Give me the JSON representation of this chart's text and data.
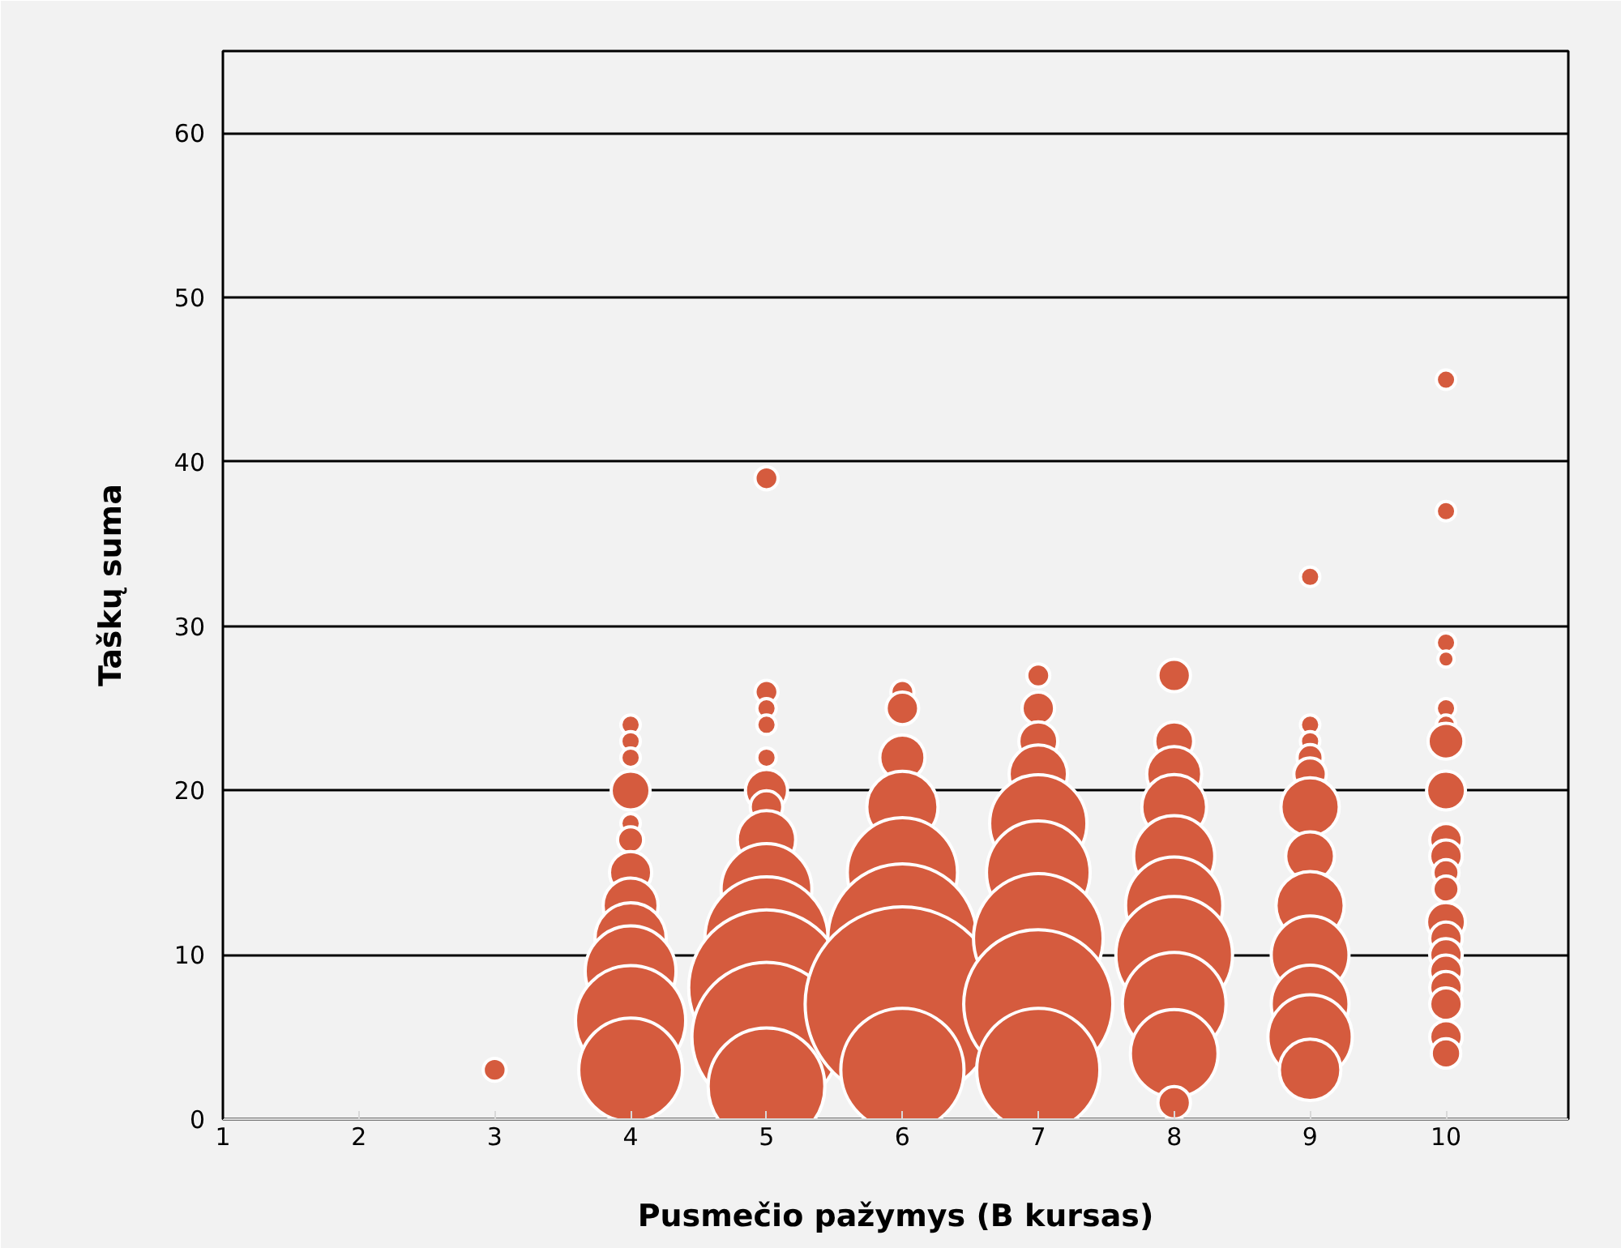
{
  "chart_data": {
    "type": "bubble",
    "xlabel": "Pusmečio pažymys (B kursas)",
    "ylabel": "Taškų suma",
    "xlim": [
      1,
      10.9
    ],
    "ylim": [
      0,
      65
    ],
    "xticks": [
      1,
      2,
      3,
      4,
      5,
      6,
      7,
      8,
      9,
      10
    ],
    "yticks": [
      0,
      10,
      20,
      30,
      40,
      50,
      60
    ],
    "grid": "y",
    "series": [
      {
        "color": "#d55b3e",
        "x": [
          3,
          4,
          4,
          4,
          4,
          4,
          4,
          4,
          4,
          4,
          4,
          4,
          4,
          5,
          5,
          5,
          5,
          5,
          5,
          5,
          5,
          5,
          5,
          5,
          5,
          5,
          6,
          6,
          6,
          6,
          6,
          6,
          6,
          6,
          7,
          7,
          7,
          7,
          7,
          7,
          7,
          7,
          7,
          8,
          8,
          8,
          8,
          8,
          8,
          8,
          8,
          8,
          8,
          9,
          9,
          9,
          9,
          9,
          9,
          9,
          9,
          9,
          9,
          9,
          9,
          10,
          10,
          10,
          10,
          10,
          10,
          10,
          10,
          10,
          10,
          10,
          10,
          10,
          10,
          10,
          10,
          10,
          10,
          10,
          10
        ],
        "values": [
          3,
          24,
          23,
          22,
          20,
          18,
          17,
          15,
          13,
          11,
          9,
          6,
          3,
          39,
          26,
          25,
          24,
          22,
          20,
          19,
          17,
          14,
          11,
          8,
          5,
          2,
          26,
          25,
          22,
          19,
          15,
          11,
          7,
          3,
          27,
          25,
          23,
          21,
          18,
          15,
          11,
          7,
          3,
          27,
          23,
          21,
          19,
          16,
          13,
          10,
          7,
          4,
          1,
          33,
          24,
          23,
          22,
          21,
          19,
          16,
          13,
          10,
          7,
          5,
          3,
          45,
          37,
          29,
          28,
          25,
          24,
          23,
          20,
          17,
          16,
          15,
          14,
          12,
          11,
          10,
          9,
          8,
          7,
          5,
          4
        ],
        "sizes": [
          0.014,
          0.01,
          0.01,
          0.01,
          0.04,
          0.01,
          0.018,
          0.047,
          0.08,
          0.134,
          0.218,
          0.321,
          0.284,
          0.014,
          0.014,
          0.01,
          0.01,
          0.01,
          0.047,
          0.028,
          0.09,
          0.218,
          0.401,
          0.64,
          0.588,
          0.36,
          0.014,
          0.028,
          0.054,
          0.134,
          0.321,
          0.588,
          1,
          0.401,
          0.014,
          0.028,
          0.04,
          0.09,
          0.25,
          0.284,
          0.444,
          0.588,
          0.401,
          0.028,
          0.04,
          0.08,
          0.111,
          0.174,
          0.25,
          0.36,
          0.284,
          0.203,
          0.028,
          0.01,
          0.01,
          0.01,
          0.018,
          0.028,
          0.09,
          0.063,
          0.123,
          0.16,
          0.16,
          0.188,
          0.1,
          0.01,
          0.01,
          0.01,
          0.007,
          0.01,
          0.01,
          0.034,
          0.04,
          0.028,
          0.028,
          0.018,
          0.018,
          0.04,
          0.028,
          0.028,
          0.028,
          0.028,
          0.028,
          0.028,
          0.023
        ]
      }
    ]
  }
}
